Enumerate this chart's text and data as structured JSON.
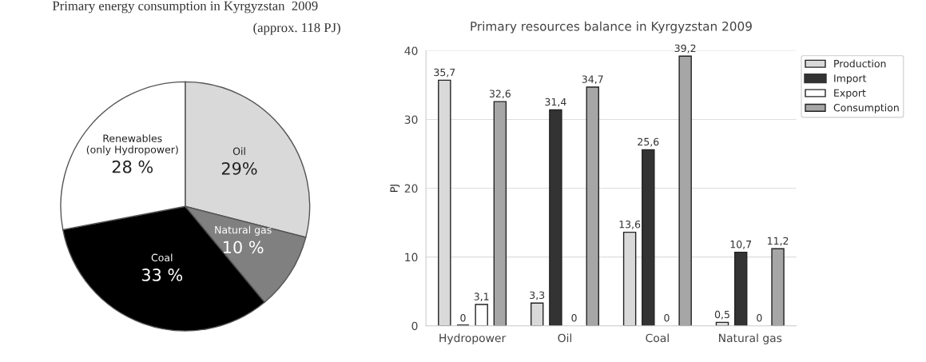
{
  "chart_data": [
    {
      "type": "pie",
      "title": "Primary energy consumption in Kyrgyzstan  2009",
      "subtitle": "(approx. 118 PJ)",
      "categories": [
        "Oil",
        "Natural gas",
        "Coal",
        "Renewables\n(only Hydropower)"
      ],
      "values": [
        29,
        10,
        33,
        28
      ],
      "value_labels": [
        "29%",
        "10 %",
        "33 %",
        "28 %"
      ],
      "colors": [
        "#d9d9d9",
        "#808080",
        "#000000",
        "#ffffff"
      ]
    },
    {
      "type": "bar",
      "title": "Primary resources balance in Kyrgyzstan 2009",
      "ylabel": "PJ",
      "categories": [
        "Hydropower",
        "Oil",
        "Coal",
        "Natural gas"
      ],
      "series": [
        {
          "name": "Production",
          "color": "#d9d9d9",
          "values": [
            35.7,
            3.3,
            13.6,
            0.5
          ],
          "value_labels": [
            "35,7",
            "3,3",
            "13,6",
            "0,5"
          ]
        },
        {
          "name": "Import",
          "color": "#333333",
          "values": [
            0,
            31.4,
            25.6,
            10.7
          ],
          "value_labels": [
            "0",
            "31,4",
            "25,6",
            "10,7"
          ]
        },
        {
          "name": "Export",
          "color": "#ffffff",
          "values": [
            3.1,
            0,
            0,
            0
          ],
          "value_labels": [
            "3,1",
            "0",
            "0",
            "0"
          ]
        },
        {
          "name": "Consumption",
          "color": "#a6a6a6",
          "values": [
            32.6,
            34.7,
            39.2,
            11.2
          ],
          "value_labels": [
            "32,6",
            "34,7",
            "39,2",
            "11,2"
          ]
        }
      ],
      "ylim": [
        0,
        40
      ],
      "yticks": [
        0,
        10,
        20,
        30,
        40
      ],
      "grid": "y",
      "legend": "top right"
    }
  ]
}
